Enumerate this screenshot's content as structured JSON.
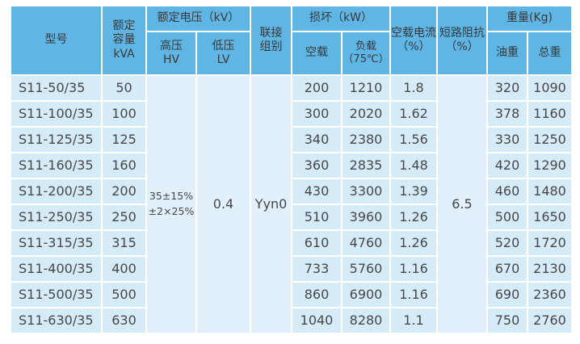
{
  "colors": {
    "header_blue": "#5fb6e5",
    "data_cell_blue": "#d6ebf8",
    "merged_cell_blue": "#e1f0fa",
    "text": "#3e3e3e",
    "grid_line": "#ffffff"
  },
  "table": {
    "headers": {
      "model": "型号",
      "capacity_lines": [
        "额定",
        "容量",
        "kVA"
      ],
      "voltage": "额定电压（kV）",
      "hv_lines": [
        "高压",
        "HV"
      ],
      "lv_lines": [
        "低压",
        "LV"
      ],
      "connection_lines": [
        "联接",
        "组别"
      ],
      "loss": "损坏（kW）",
      "no_load": "空载",
      "on_load_lines": [
        "负载",
        "（75℃）"
      ],
      "no_load_current_lines": [
        "空载电流",
        "（%）"
      ],
      "impedance_lines": [
        "短路阻抗",
        "（%）"
      ],
      "weight": "重量(Kg)",
      "oil_weight": "油重",
      "total_weight": "总重"
    },
    "merged_values": {
      "hv_lines": [
        "35±15%",
        "±2×25%"
      ],
      "lv": "0.4",
      "connection": "Yyn0",
      "impedance": "6.5"
    },
    "rows": [
      {
        "model": "S11-50/35",
        "capacity": "50",
        "no_load": "200",
        "on_load": "1210",
        "no_load_current": "1.8",
        "oil_weight": "320",
        "total_weight": "1090"
      },
      {
        "model": "S11-100/35",
        "capacity": "100",
        "no_load": "300",
        "on_load": "2020",
        "no_load_current": "1.62",
        "oil_weight": "378",
        "total_weight": "1160"
      },
      {
        "model": "S11-125/35",
        "capacity": "125",
        "no_load": "340",
        "on_load": "2380",
        "no_load_current": "1.56",
        "oil_weight": "330",
        "total_weight": "1250"
      },
      {
        "model": "S11-160/35",
        "capacity": "160",
        "no_load": "360",
        "on_load": "2835",
        "no_load_current": "1.48",
        "oil_weight": "420",
        "total_weight": "1290"
      },
      {
        "model": "S11-200/35",
        "capacity": "200",
        "no_load": "430",
        "on_load": "3300",
        "no_load_current": "1.39",
        "oil_weight": "460",
        "total_weight": "1480"
      },
      {
        "model": "S11-250/35",
        "capacity": "250",
        "no_load": "510",
        "on_load": "3960",
        "no_load_current": "1.26",
        "oil_weight": "500",
        "total_weight": "1650"
      },
      {
        "model": "S11-315/35",
        "capacity": "315",
        "no_load": "610",
        "on_load": "4760",
        "no_load_current": "1.26",
        "oil_weight": "520",
        "total_weight": "1720"
      },
      {
        "model": "S11-400/35",
        "capacity": "400",
        "no_load": "733",
        "on_load": "5760",
        "no_load_current": "1.16",
        "oil_weight": "670",
        "total_weight": "2130"
      },
      {
        "model": "S11-500/35",
        "capacity": "500",
        "no_load": "860",
        "on_load": "6900",
        "no_load_current": "1.16",
        "oil_weight": "690",
        "total_weight": "2360"
      },
      {
        "model": "S11-630/35",
        "capacity": "630",
        "no_load": "1040",
        "on_load": "8280",
        "no_load_current": "1.1",
        "oil_weight": "750",
        "total_weight": "2760"
      }
    ]
  }
}
